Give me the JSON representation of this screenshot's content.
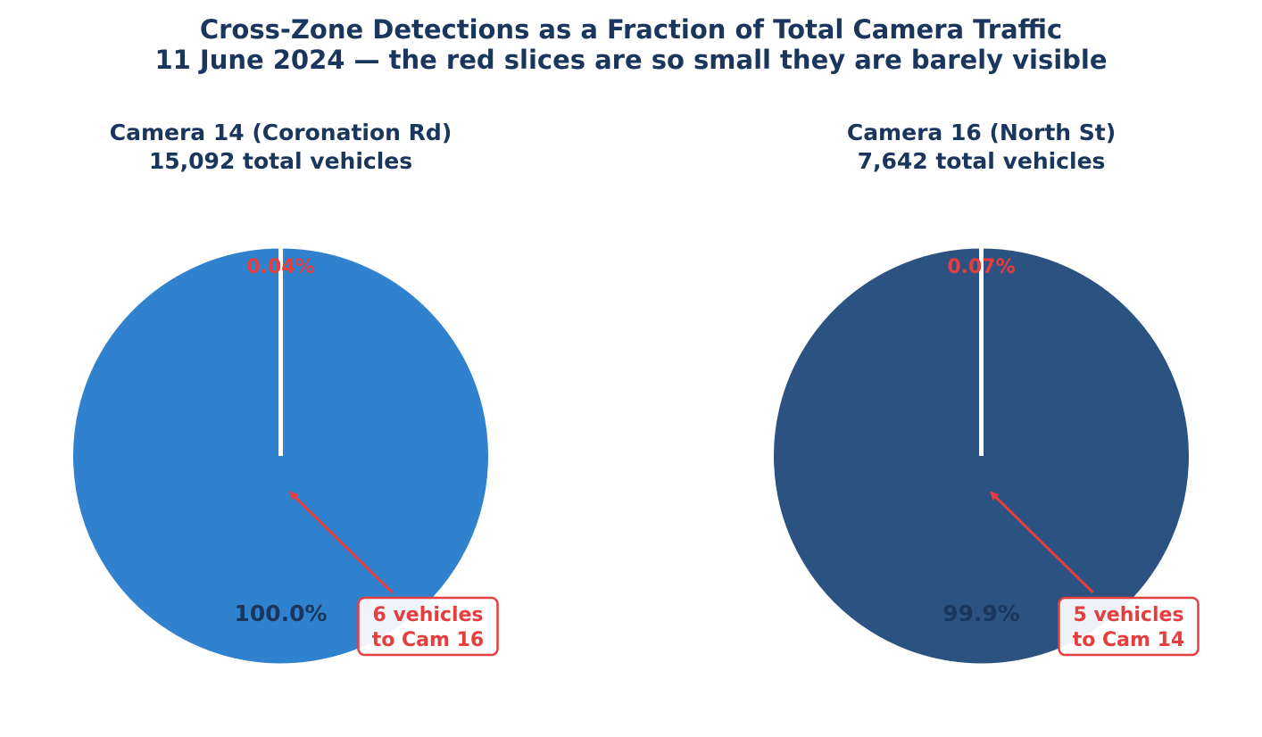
{
  "figure": {
    "title_line1": "Cross-Zone Detections as a Fraction of Total Camera Traffic",
    "title_line2": "11 June 2024 — the red slices are so small they are barely visible"
  },
  "colors": {
    "title": "#1a365d",
    "highlight": "#e53e3e",
    "camera14": "#3182ce",
    "camera16": "#2c5282",
    "background": "#ffffff"
  },
  "chart_data": [
    {
      "type": "pie",
      "title_line1": "Camera 14 (Coronation Rd)",
      "title_line2": "15,092 total vehicles",
      "slices": [
        {
          "label": "100.0%",
          "value": 15086,
          "color": "#3182ce"
        },
        {
          "label": "0.04%",
          "value": 6,
          "color": "#e53e3e"
        }
      ],
      "annotation": {
        "line1": "6 vehicles",
        "line2": "to Cam 16"
      }
    },
    {
      "type": "pie",
      "title_line1": "Camera 16 (North St)",
      "title_line2": "7,642 total vehicles",
      "slices": [
        {
          "label": "99.9%",
          "value": 7637,
          "color": "#2c5282"
        },
        {
          "label": "0.07%",
          "value": 5,
          "color": "#e53e3e"
        }
      ],
      "annotation": {
        "line1": "5 vehicles",
        "line2": "to Cam 14"
      }
    }
  ]
}
